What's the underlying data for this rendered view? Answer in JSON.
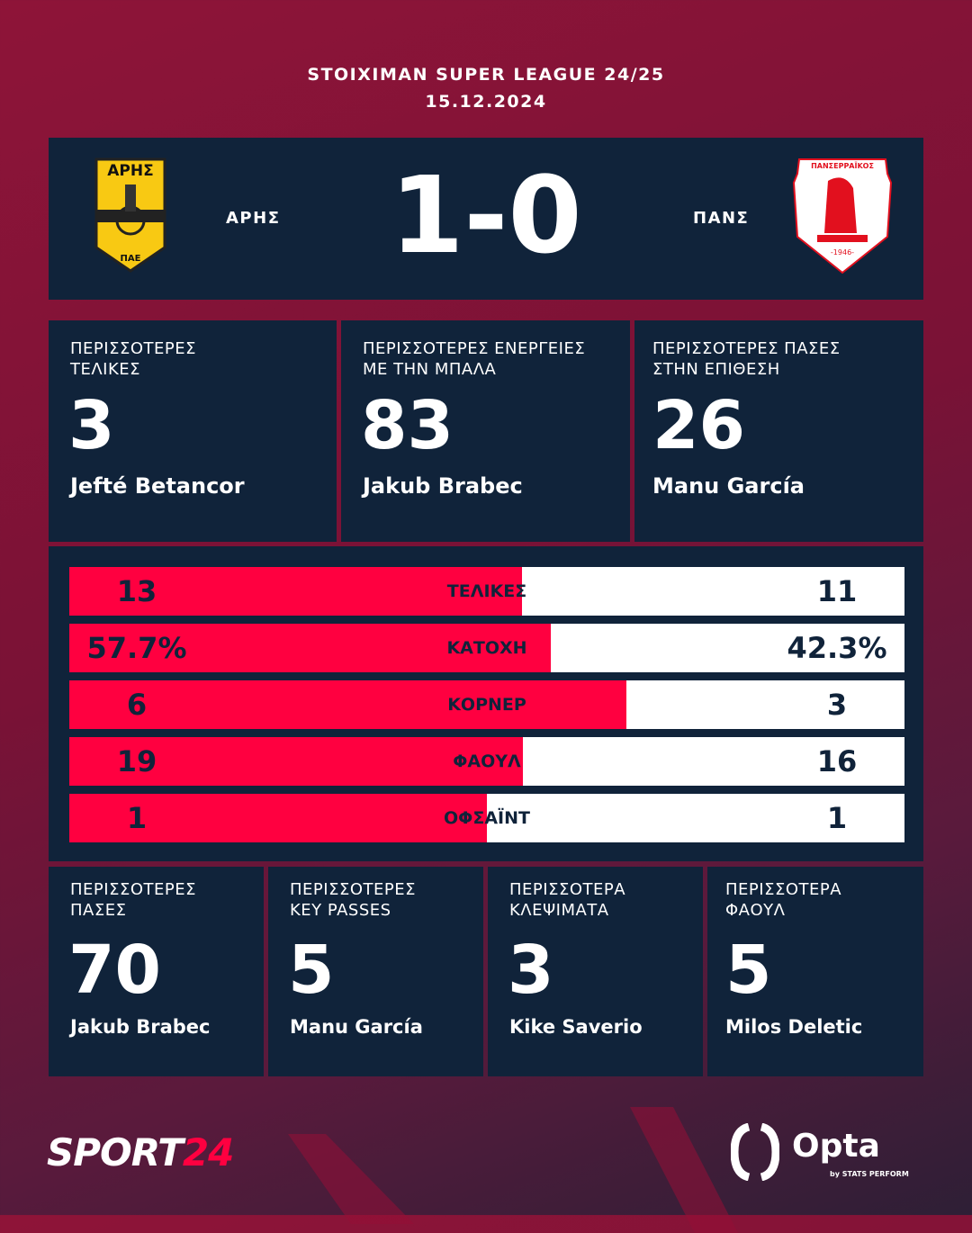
{
  "header": {
    "competition": "STOIXIMAN SUPER LEAGUE 24/25",
    "date": "15.12.2024"
  },
  "match": {
    "home": {
      "name": "ΑΡΗΣ",
      "badge_text": "ΑΡΗΣ",
      "badge_sub": "ΠΑΕ",
      "badge_color": "#f8c913"
    },
    "away": {
      "name": "ΠΑΝΣ",
      "badge_text": "ΠΑΝΣΕΡΡΑΪΚΟΣ",
      "badge_sub": "-1946-",
      "badge_color": "#e2101e"
    },
    "score": "1-0"
  },
  "top_cards": [
    {
      "label1": "ΠΕΡΙΣΣΟΤΕΡΕΣ",
      "label2": "ΤΕΛΙΚΕΣ",
      "value": "3",
      "player": "Jefté Betancor"
    },
    {
      "label1": "ΠΕΡΙΣΣΟΤΕΡΕΣ ΕΝΕΡΓΕΙΕΣ",
      "label2": "ΜΕ ΤΗΝ ΜΠΑΛΑ",
      "value": "83",
      "player": "Jakub Brabec"
    },
    {
      "label1": "ΠΕΡΙΣΣΟΤΕΡΕΣ ΠΑΣΕΣ",
      "label2": "ΣΤΗΝ ΕΠΙΘΕΣΗ",
      "value": "26",
      "player": "Manu García"
    }
  ],
  "stats": [
    {
      "label": "ΤΕΛΙΚΕΣ",
      "home": "13",
      "away": "11",
      "home_share": 0.542
    },
    {
      "label": "ΚΑΤΟΧΗ",
      "home": "57.7%",
      "away": "42.3%",
      "home_share": 0.577
    },
    {
      "label": "ΚΟΡΝΕΡ",
      "home": "6",
      "away": "3",
      "home_share": 0.667
    },
    {
      "label": "ΦΑΟΥΛ",
      "home": "19",
      "away": "16",
      "home_share": 0.543
    },
    {
      "label": "ΟΦΣΑΪΝΤ",
      "home": "1",
      "away": "1",
      "home_share": 0.5
    }
  ],
  "bottom_cards": [
    {
      "label1": "ΠΕΡΙΣΣΟΤΕΡΕΣ",
      "label2": "ΠΑΣΕΣ",
      "value": "70",
      "player": "Jakub Brabec"
    },
    {
      "label1": "ΠΕΡΙΣΣΟΤΕΡΕΣ",
      "label2": "KEY PASSES",
      "value": "5",
      "player": "Manu García"
    },
    {
      "label1": "ΠΕΡΙΣΣΟΤΕΡΑ",
      "label2": "ΚΛΕΨΙΜΑΤΑ",
      "value": "3",
      "player": "Kike Saverio"
    },
    {
      "label1": "ΠΕΡΙΣΣΟΤΕΡΑ",
      "label2": "ΦΑΟΥΛ",
      "value": "5",
      "player": "Milos Deletic"
    }
  ],
  "footer": {
    "brand_a": "SPORT",
    "brand_b": "24",
    "opta": "Opta",
    "opta_sub": "by STATS PERFORM"
  },
  "colors": {
    "accent": "#ff0040",
    "panel": "#10233a",
    "background": "#8e1438"
  }
}
